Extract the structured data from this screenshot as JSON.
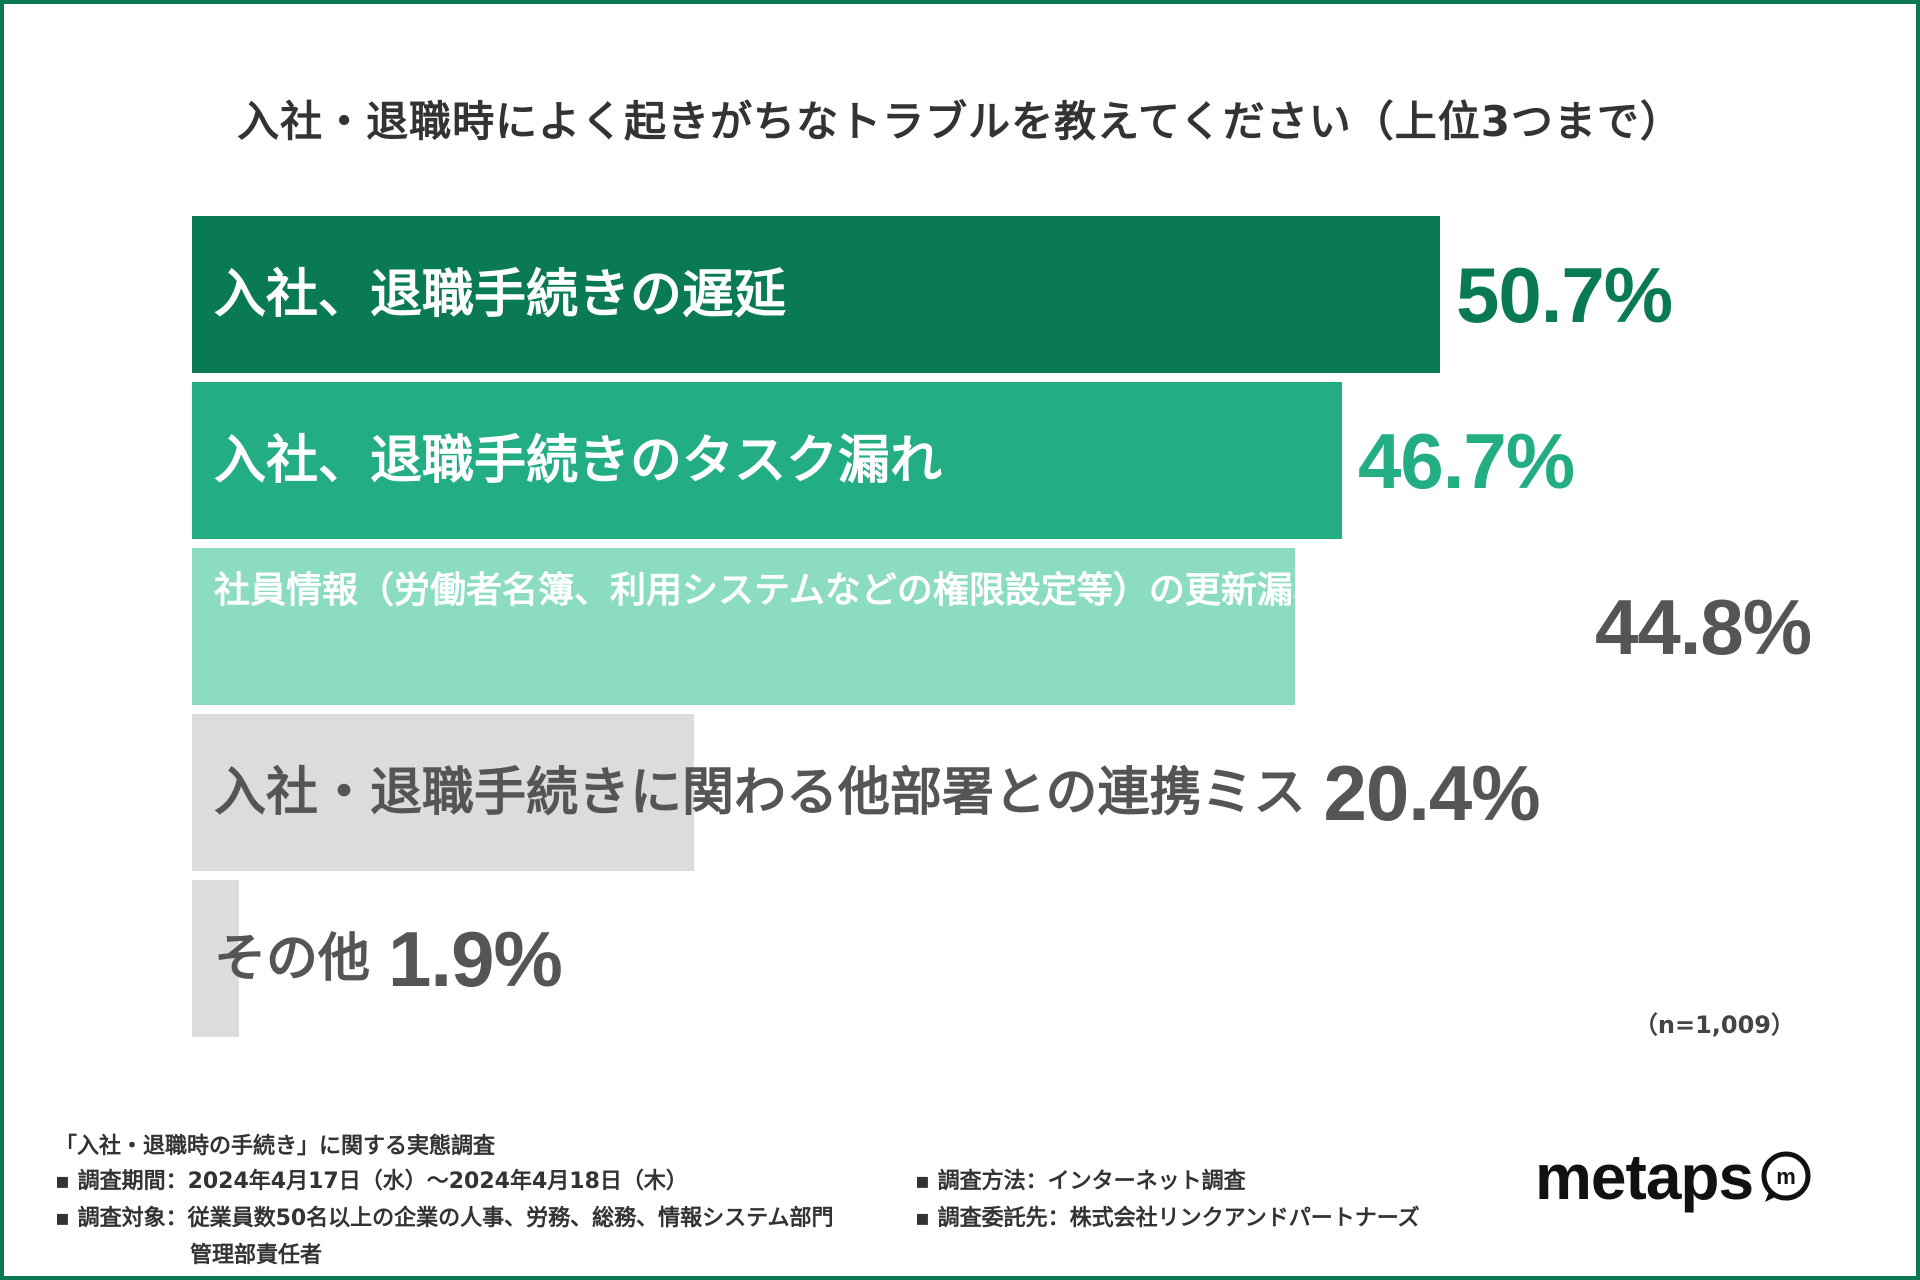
{
  "title": "入社・退職時によく起きがちなトラブルを教えてください（上位3つまで）",
  "note": "（n=1,009）",
  "chart_data": {
    "type": "bar",
    "orientation": "horizontal",
    "categories": [
      "入社、退職手続きの遅延",
      "入社、退職手続きのタスク漏れ",
      "社員情報（労働者名簿、利用システムなどの権限設定等）の更新漏れ",
      "入社・退職手続きに関わる他部署との連携ミス",
      "その他"
    ],
    "values": [
      50.7,
      46.7,
      44.8,
      20.4,
      1.9
    ],
    "value_labels": [
      "50.7%",
      "46.7%",
      "44.8%",
      "20.4%",
      "1.9%"
    ],
    "colors": [
      "#0a7a55",
      "#23ad83",
      "#8cdcc4",
      "#dcdcdc",
      "#dcdcdc"
    ],
    "label_colors": [
      "#ffffff",
      "#ffffff",
      "#ffffff",
      "#555555",
      "#555555"
    ],
    "value_colors": [
      "#0a7a55",
      "#23ad83",
      "#555555",
      "#555555",
      "#555555"
    ],
    "xlim": [
      0,
      50.7
    ]
  },
  "footer": {
    "survey_name": "「入社・退職時の手続き」に関する実態調査",
    "period": "▪ 調査期間：2024年4月17日（水）〜2024年4月18日（木）",
    "target_line1": "▪ 調査対象：従業員数50名以上の企業の人事、労務、総務、情報システム部門",
    "target_line2": "管理部責任者",
    "method": "▪ 調査方法：インターネット調査",
    "commissioner": "▪ 調査委託先：株式会社リンクアンドパートナーズ"
  },
  "logo": {
    "text": "metaps",
    "mark": "m"
  }
}
